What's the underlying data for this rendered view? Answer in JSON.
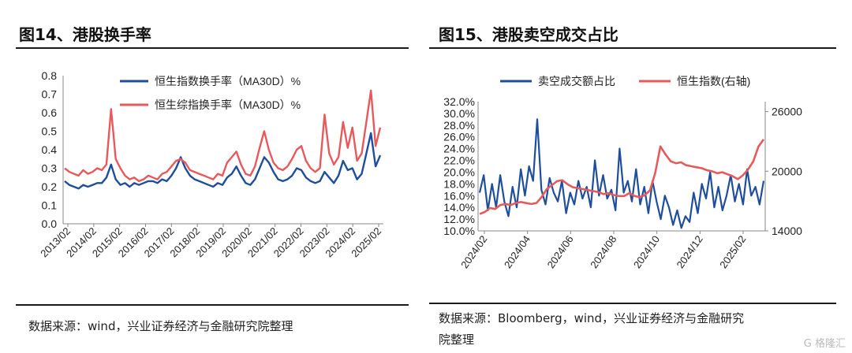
{
  "left": {
    "title": "图14、港股换手率",
    "source": "数据来源：wind，兴业证券经济与金融研究院整理",
    "chart_data": {
      "type": "line",
      "ylim": [
        0.0,
        0.8
      ],
      "yticks": [
        "0.0",
        "0.1",
        "0.2",
        "0.3",
        "0.4",
        "0.5",
        "0.6",
        "0.7",
        "0.8"
      ],
      "xticks": [
        "2013/02",
        "2014/02",
        "2015/02",
        "2016/02",
        "2017/02",
        "2018/02",
        "2019/02",
        "2020/02",
        "2021/02",
        "2022/02",
        "2023/02",
        "2024/02",
        "2025/02"
      ],
      "legend_position": "top-center",
      "series": [
        {
          "name": "恒生指数换手率（MA30D）%",
          "color": "#1f4e9c",
          "values": [
            0.23,
            0.21,
            0.2,
            0.19,
            0.21,
            0.2,
            0.21,
            0.22,
            0.22,
            0.25,
            0.32,
            0.24,
            0.21,
            0.22,
            0.2,
            0.22,
            0.21,
            0.22,
            0.23,
            0.23,
            0.22,
            0.24,
            0.23,
            0.26,
            0.3,
            0.36,
            0.3,
            0.26,
            0.24,
            0.23,
            0.22,
            0.21,
            0.2,
            0.22,
            0.21,
            0.25,
            0.27,
            0.31,
            0.26,
            0.22,
            0.21,
            0.24,
            0.3,
            0.36,
            0.33,
            0.28,
            0.24,
            0.23,
            0.24,
            0.26,
            0.3,
            0.29,
            0.25,
            0.23,
            0.22,
            0.23,
            0.28,
            0.25,
            0.22,
            0.26,
            0.34,
            0.29,
            0.3,
            0.24,
            0.27,
            0.38,
            0.49,
            0.31,
            0.37
          ]
        },
        {
          "name": "恒生综指换手率（MA30D）%",
          "color": "#e8595c",
          "values": [
            0.3,
            0.28,
            0.27,
            0.26,
            0.29,
            0.27,
            0.28,
            0.3,
            0.29,
            0.32,
            0.62,
            0.35,
            0.3,
            0.26,
            0.24,
            0.25,
            0.23,
            0.24,
            0.26,
            0.25,
            0.24,
            0.27,
            0.28,
            0.31,
            0.34,
            0.35,
            0.33,
            0.29,
            0.28,
            0.27,
            0.26,
            0.25,
            0.24,
            0.27,
            0.26,
            0.33,
            0.36,
            0.39,
            0.32,
            0.27,
            0.26,
            0.31,
            0.41,
            0.5,
            0.4,
            0.33,
            0.3,
            0.29,
            0.31,
            0.35,
            0.4,
            0.42,
            0.34,
            0.3,
            0.28,
            0.3,
            0.59,
            0.38,
            0.32,
            0.36,
            0.55,
            0.41,
            0.52,
            0.34,
            0.38,
            0.55,
            0.72,
            0.42,
            0.52
          ]
        }
      ]
    }
  },
  "right": {
    "title": "图15、港股卖空成交占比",
    "source_line1": "数据来源：Bloomberg，wind，兴业证券经济与金融研究",
    "source_line2": "院整理",
    "chart_data": {
      "type": "line",
      "ylim": [
        10.0,
        32.0
      ],
      "yticks": [
        "10.0%",
        "12.0%",
        "14.0%",
        "16.0%",
        "18.0%",
        "20.0%",
        "22.0%",
        "24.0%",
        "26.0%",
        "28.0%",
        "30.0%",
        "32.0%"
      ],
      "y2lim": [
        14000,
        27000
      ],
      "y2ticks": [
        "14000",
        "20000",
        "26000"
      ],
      "xticks": [
        "2024/02",
        "2024/04",
        "2024/06",
        "2024/08",
        "2024/10",
        "2024/12",
        "2025/02"
      ],
      "legend_position": "top",
      "series": [
        {
          "name": "卖空成交额占比",
          "color": "#1f4e9c",
          "axis": "left",
          "values": [
            16.5,
            19.5,
            13.5,
            18.0,
            14.0,
            19.5,
            15.0,
            12.5,
            17.5,
            14.0,
            20.5,
            16.0,
            21.0,
            18.5,
            29.0,
            17.0,
            14.5,
            19.0,
            16.5,
            15.0,
            18.5,
            13.0,
            16.5,
            14.5,
            18.5,
            15.5,
            17.5,
            14.0,
            22.0,
            16.0,
            19.5,
            15.5,
            17.0,
            13.5,
            24.0,
            16.5,
            18.5,
            15.0,
            20.5,
            14.5,
            17.5,
            13.0,
            18.5,
            15.0,
            12.0,
            16.0,
            14.0,
            11.0,
            13.5,
            10.5,
            12.5,
            11.5,
            16.5,
            13.0,
            18.0,
            15.5,
            20.0,
            14.0,
            17.5,
            13.5,
            16.0,
            19.5,
            15.0,
            18.0,
            14.5,
            20.5,
            16.0,
            17.5,
            14.5,
            18.5
          ]
        },
        {
          "name": "恒生指数(右轴)",
          "color": "#e8595c",
          "axis": "right",
          "values": [
            15700,
            15900,
            16300,
            16200,
            16600,
            16700,
            16600,
            16800,
            16900,
            16800,
            16700,
            16800,
            17400,
            18200,
            18600,
            19000,
            19100,
            18700,
            18400,
            18300,
            18200,
            18100,
            18000,
            17900,
            17700,
            17800,
            17600,
            17500,
            17500,
            17800,
            17500,
            17400,
            17600,
            18100,
            19800,
            22500,
            21700,
            21000,
            20800,
            20900,
            20600,
            20500,
            20400,
            20300,
            20100,
            20000,
            19800,
            19900,
            19700,
            19500,
            19200,
            19600,
            20200,
            21000,
            22500,
            23200
          ]
        }
      ]
    }
  },
  "watermark": "G 格隆汇"
}
